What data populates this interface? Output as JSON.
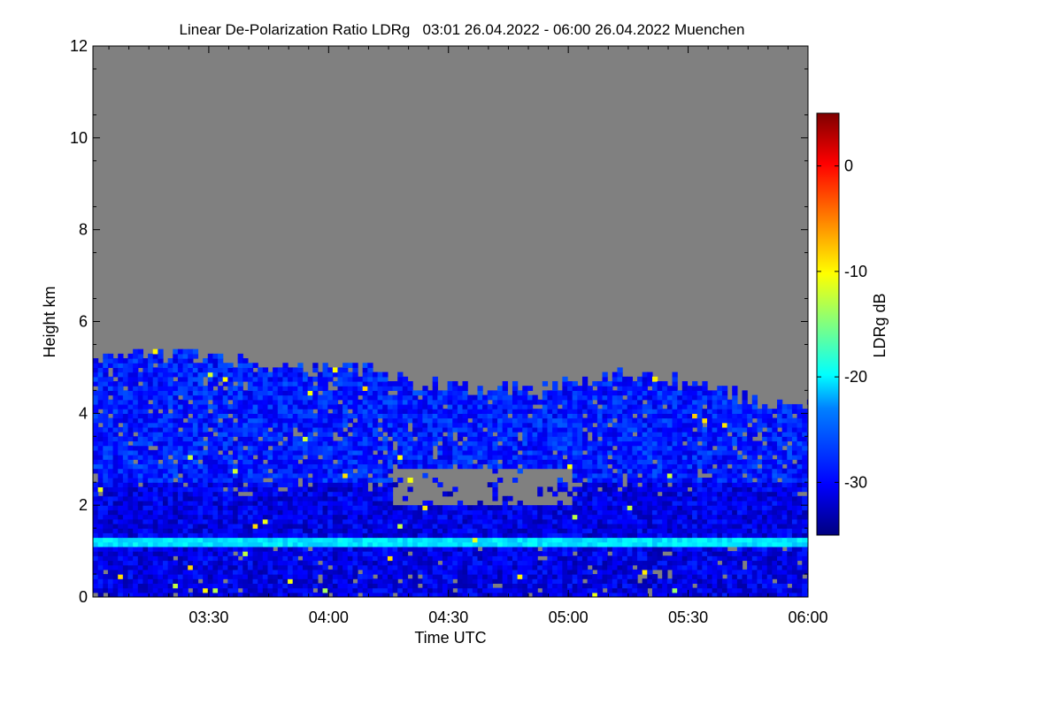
{
  "chart_data": {
    "type": "heatmap",
    "title": "Linear De-Polarization Ratio LDRg   03:01 26.04.2022 - 06:00 26.04.2022 Muenchen",
    "xlabel": "Time UTC",
    "ylabel": "Height km",
    "x_range": [
      "03:01",
      "06:00"
    ],
    "ylim": [
      0,
      12
    ],
    "x_ticks": [
      "03:30",
      "04:00",
      "04:30",
      "05:00",
      "05:30",
      "06:00"
    ],
    "y_ticks": [
      "0",
      "2",
      "4",
      "6",
      "8",
      "10",
      "12"
    ],
    "missing_color": "#808080",
    "colorbar": {
      "label": "LDRg dB",
      "range": [
        -35,
        5
      ],
      "ticks": [
        "0",
        "-10",
        "-20",
        "-30"
      ],
      "colormap": "jet"
    },
    "features": {
      "signal_top_km": [
        5.1,
        5.3,
        5.2,
        4.9,
        5.0,
        4.6,
        4.5,
        4.5,
        4.8,
        4.7,
        4.3,
        4.2
      ],
      "clear_gap": {
        "time": [
          "04:15",
          "05:00"
        ],
        "height_km": [
          2.0,
          2.8
        ]
      },
      "layer_height_km": 1.15,
      "layer_ldr_db": -21,
      "background_ldr_db": -31
    }
  }
}
